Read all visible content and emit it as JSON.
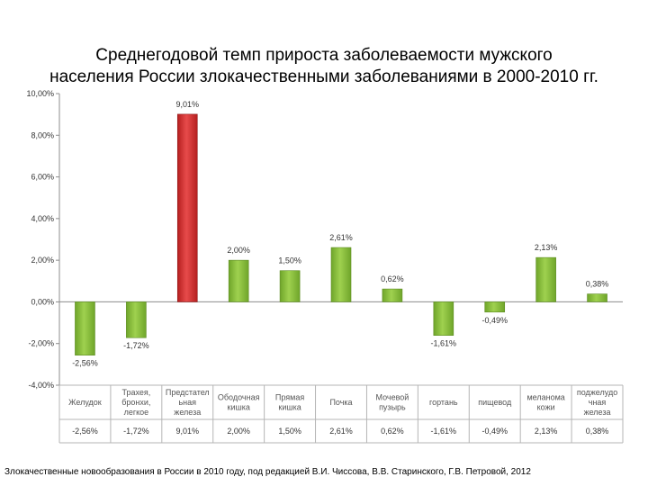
{
  "title_lines": [
    "Среднегодовой темп прироста заболеваемости мужского",
    "населения России злокачественными заболеваниями в 2000-2010 гг."
  ],
  "footer": "Злокачественные новообразования в России в 2010 году, под редакцией В.И. Чиссова, В.В. Старинского, Г.В. Петровой, 2012",
  "colors": {
    "positive": "#8dc63f",
    "highlight": "#d93030",
    "negative": "#8dc63f"
  },
  "chart_data": {
    "type": "bar",
    "categories": [
      [
        "Желудок"
      ],
      [
        "Трахея,",
        "бронхи,",
        "легкое"
      ],
      [
        "Предстател",
        "ьная",
        "железа"
      ],
      [
        "Ободочная",
        "кишка"
      ],
      [
        "Прямая",
        "кишка"
      ],
      [
        "Почка"
      ],
      [
        "Мочевой",
        "пузырь"
      ],
      [
        "гортань"
      ],
      [
        "пищевод"
      ],
      [
        "меланома",
        "кожи"
      ],
      [
        "поджелудо",
        "чная",
        "железа"
      ]
    ],
    "values": [
      -2.56,
      -1.72,
      9.01,
      2.0,
      1.5,
      2.61,
      0.62,
      -1.61,
      -0.49,
      2.13,
      0.38
    ],
    "data_labels": [
      "-2,56%",
      "-1,72%",
      "9,01%",
      "2,00%",
      "1,50%",
      "2,61%",
      "0,62%",
      "-1,61%",
      "-0,49%",
      "2,13%",
      "0,38%"
    ],
    "highlight_index": 2,
    "ylim": [
      -4,
      10
    ],
    "yticks": [
      10,
      8,
      6,
      4,
      2,
      0,
      -2,
      -4
    ],
    "ytick_labels": [
      "10,00%",
      "8,00%",
      "6,00%",
      "4,00%",
      "2,00%",
      "0,00%",
      "-2,00%",
      "-4,00%"
    ],
    "grid": false,
    "legend": "none",
    "table_row": true
  }
}
